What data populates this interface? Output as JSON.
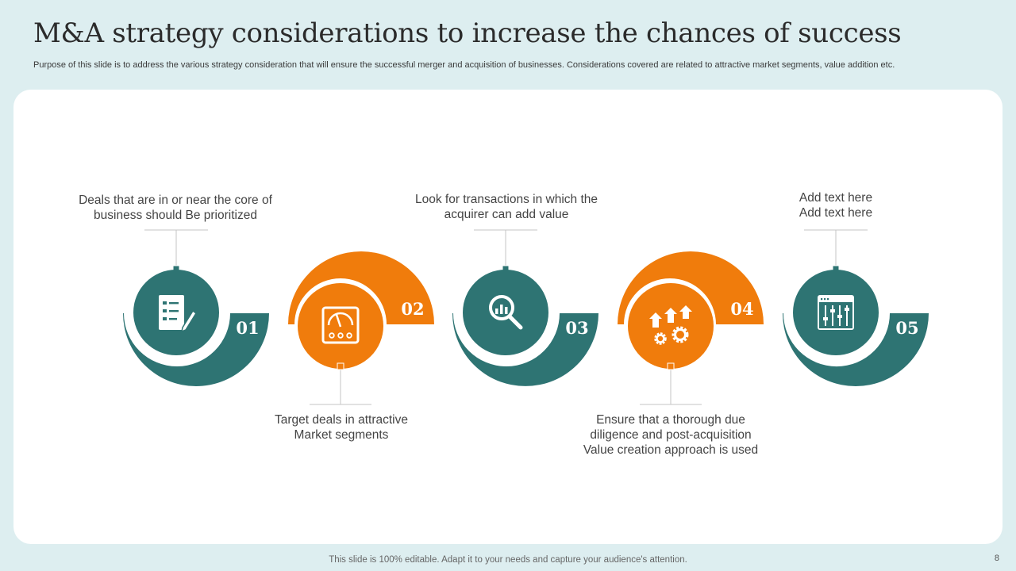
{
  "slide": {
    "title": "M&A strategy considerations to increase the chances of success",
    "subtitle": "Purpose of this slide is to address the various strategy consideration that will ensure the successful merger and acquisition of businesses. Considerations covered are related to attractive market segments, value addition etc.",
    "footer": "This slide is 100% editable. Adapt it to your needs and capture your audience's attention.",
    "page_number": "8"
  },
  "colors": {
    "teal": "#2e7473",
    "orange": "#f07c0c",
    "background": "#ddeef0",
    "card": "#ffffff"
  },
  "steps": [
    {
      "number": "01",
      "icon": "checklist-icon",
      "color": "teal",
      "caption": "Deals that are in or near the core of\nbusiness should  Be prioritized"
    },
    {
      "number": "02",
      "icon": "gauge-meter-icon",
      "color": "orange",
      "caption": "Target deals in attractive\nMarket segments"
    },
    {
      "number": "03",
      "icon": "magnifier-chart-icon",
      "color": "teal",
      "caption": "Look for transactions in which the\nacquirer can add value"
    },
    {
      "number": "04",
      "icon": "gears-growth-icon",
      "color": "orange",
      "caption": "Ensure that a thorough due\ndiligence and post-acquisition\nValue creation approach is used"
    },
    {
      "number": "05",
      "icon": "control-sliders-icon",
      "color": "teal",
      "caption": "Add text here\nAdd text here"
    }
  ]
}
